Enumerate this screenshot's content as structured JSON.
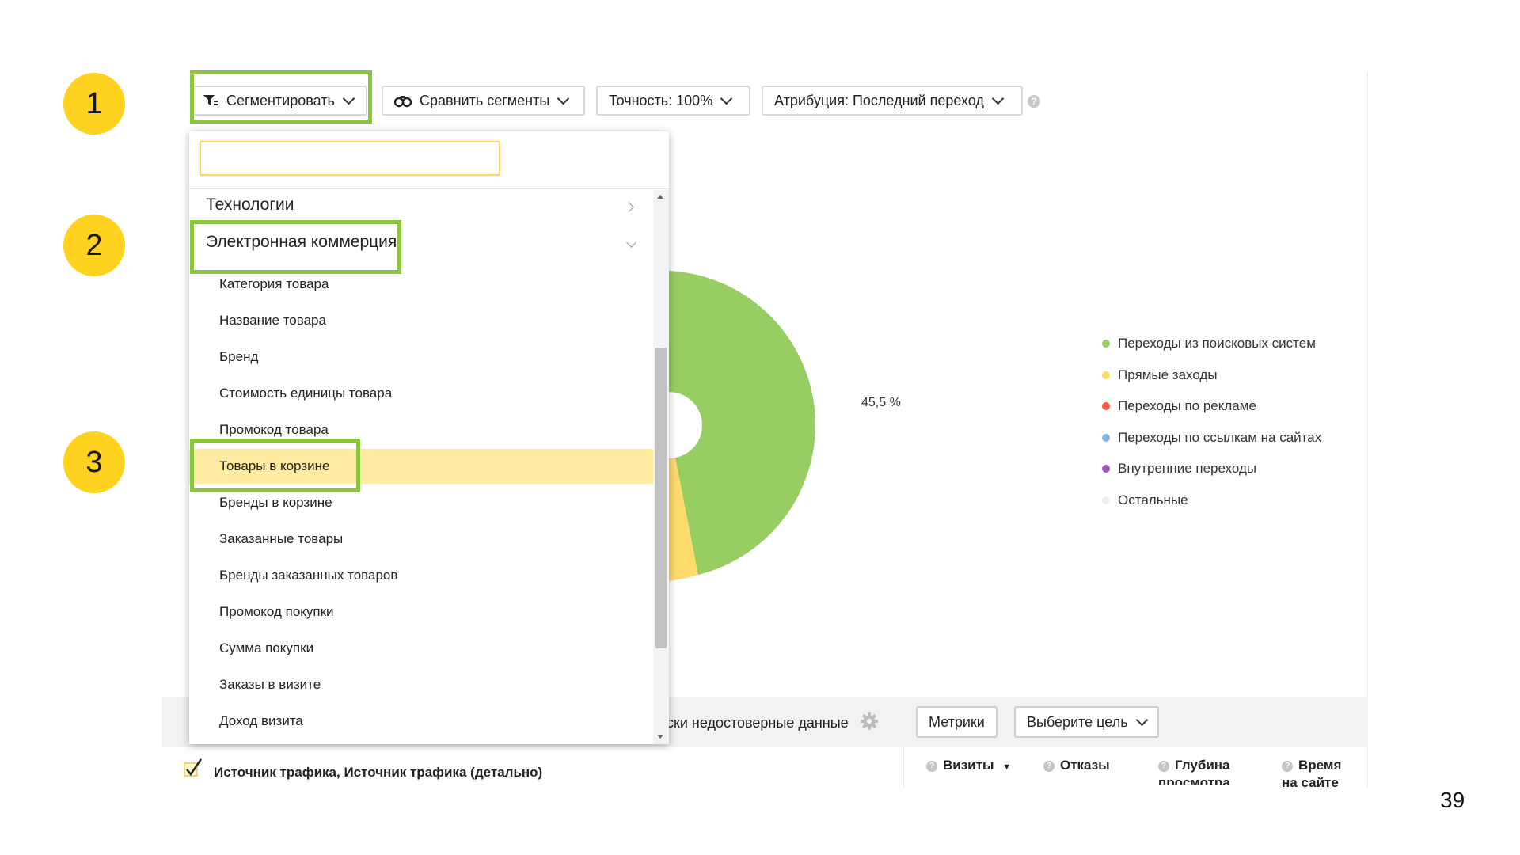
{
  "steps": [
    "1",
    "2",
    "3"
  ],
  "toolbar": {
    "segment_label": "Сегментировать",
    "compare_label": "Сравнить сегменты",
    "accuracy_label": "Точность: 100%",
    "attribution_label": "Атрибуция: Последний переход",
    "help_glyph": "?"
  },
  "dropdown": {
    "search_value": "",
    "category_technologies": "Технологии",
    "category_ecommerce": "Электронная коммерция",
    "items": [
      "Категория товара",
      "Название товара",
      "Бренд",
      "Стоимость единицы товара",
      "Промокод товара",
      "Товары в корзине",
      "Бренды в корзине",
      "Заказанные товары",
      "Бренды заказанных товаров",
      "Промокод покупки",
      "Сумма покупки",
      "Заказы в визите",
      "Доход визита"
    ],
    "selected_item": "Товары в корзине"
  },
  "chart": {
    "percent_label": "45,5 %"
  },
  "chart_data": {
    "type": "pie",
    "categories": [
      "Переходы из поисковых систем",
      "Прямые заходы",
      "Переходы по рекламе",
      "Переходы по ссылкам на сайтах",
      "Внутренние переходы",
      "Остальные"
    ],
    "values": [
      45.5,
      null,
      null,
      null,
      null,
      null
    ],
    "colors": [
      "#97cd63",
      "#fddb6d",
      "#f05a41",
      "#7eb6e8",
      "#9d57b8",
      "#eeeeee"
    ],
    "legend_position": "right"
  },
  "legend": {
    "items": [
      {
        "label": "Переходы из поисковых систем",
        "color": "#97cd63"
      },
      {
        "label": "Прямые заходы",
        "color": "#fddb6d"
      },
      {
        "label": "Переходы по рекламе",
        "color": "#f05a41"
      },
      {
        "label": "Переходы по ссылкам на сайтах",
        "color": "#7eb6e8"
      },
      {
        "label": "Внутренние переходы",
        "color": "#9d57b8"
      },
      {
        "label": "Остальные",
        "color": "#eeeeee"
      }
    ]
  },
  "bottom": {
    "unreliable_text": "ски недостоверные данные",
    "metrics_label": "Метрики",
    "goal_label": "Выберите цель",
    "grouping_label": "Источник трафика, Источник трафика (детально)"
  },
  "columns": {
    "visits": "Визиты",
    "visits_sort": "▼",
    "bounces": "Отказы",
    "depth_line1": "Глубина",
    "depth_line2": "просмотра",
    "time_line1": "Время",
    "time_line2": "на сайте",
    "help_glyph": "?"
  },
  "page_number": "39",
  "colors": {
    "highlight_green": "#8cc63f",
    "badge_yellow": "#ffd21f",
    "selection_yellow": "#feeaa0"
  }
}
